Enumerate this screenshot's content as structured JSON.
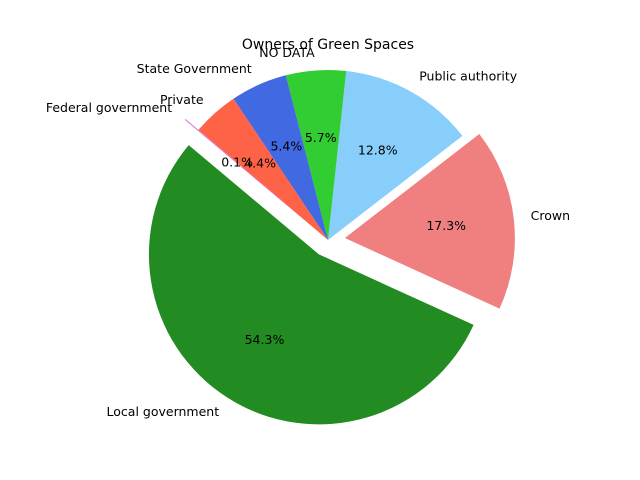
{
  "chart_data": {
    "type": "pie",
    "title": "Owners of Green Spaces",
    "slices": [
      {
        "label": "Local government",
        "value": 54.3,
        "pct_label": "54.3%",
        "color": "#228B22",
        "explode": 0.1
      },
      {
        "label": "Crown",
        "value": 17.3,
        "pct_label": "17.3%",
        "color": "#F08080",
        "explode": 0.1
      },
      {
        "label": "Public authority",
        "value": 12.8,
        "pct_label": "12.8%",
        "color": "#87CEFA",
        "explode": 0
      },
      {
        "label": "NO DATA",
        "value": 5.7,
        "pct_label": "5.7%",
        "color": "#32CD32",
        "explode": 0
      },
      {
        "label": "State Government",
        "value": 5.4,
        "pct_label": "5.4%",
        "color": "#4169E1",
        "explode": 0
      },
      {
        "label": "Private",
        "value": 4.4,
        "pct_label": "4.4%",
        "color": "#FF6347",
        "explode": 0
      },
      {
        "label": "Federal government",
        "value": 0.1,
        "pct_label": "0.1%",
        "color": "#DA70D6",
        "explode": 0.1
      }
    ],
    "start_angle_deg": 140,
    "direction": "counterclockwise"
  }
}
